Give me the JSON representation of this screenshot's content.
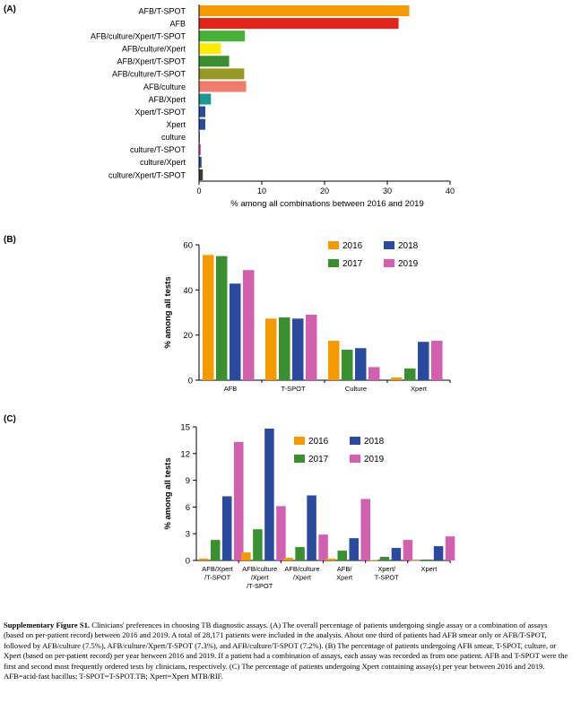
{
  "colors": {
    "y2016": "#f49a00",
    "y2017": "#3a8f2e",
    "y2018": "#2a4aa0",
    "y2019": "#d35faf"
  },
  "chart_data": [
    {
      "panel_label": "(A)",
      "type": "bar",
      "orientation": "horizontal",
      "categories": [
        "AFB/T-SPOT",
        "AFB",
        "AFB/culture/Xpert/T-SPOT",
        "AFB/culture/Xpert",
        "AFB/Xpert/T-SPOT",
        "AFB/culture/T-SPOT",
        "AFB/culture",
        "AFB/Xpert",
        "Xpert/T-SPOT",
        "Xpert",
        "culture",
        "culture/T-SPOT",
        "culture/Xpert",
        "culture/Xpert/T-SPOT"
      ],
      "values": [
        33.5,
        31.8,
        7.3,
        3.5,
        4.8,
        7.2,
        7.5,
        1.9,
        1.0,
        1.0,
        0.1,
        0.3,
        0.4,
        0.6
      ],
      "bar_colors": [
        "#f49a00",
        "#e0261c",
        "#47b036",
        "#ffeb00",
        "#3a8f2e",
        "#999926",
        "#ef7b6b",
        "#189a90",
        "#2a4aa0",
        "#2a4aa0",
        "#3a3a3a",
        "#d35faf",
        "#2a4aa0",
        "#3a3a3a"
      ],
      "xlabel": "% among all combinations between 2016 and 2019",
      "xlim": [
        0,
        40
      ],
      "xticks": [
        "0",
        "10",
        "20",
        "30",
        "40"
      ],
      "grid": false
    },
    {
      "panel_label": "(B)",
      "type": "bar",
      "categories": [
        "AFB",
        "T-SPOT",
        "Culture",
        "Xpert"
      ],
      "series": [
        {
          "name": "2016",
          "values": [
            55.5,
            27.3,
            17.5,
            1.2
          ]
        },
        {
          "name": "2017",
          "values": [
            55.0,
            27.8,
            13.5,
            5.2
          ]
        },
        {
          "name": "2018",
          "values": [
            42.8,
            27.3,
            14.2,
            17.0
          ]
        },
        {
          "name": "2019",
          "values": [
            48.8,
            29.0,
            5.8,
            17.5
          ]
        }
      ],
      "ylabel": "% among all tests",
      "ylim": [
        0,
        60
      ],
      "yticks": [
        "0",
        "20",
        "40",
        "60"
      ],
      "legend": "top-right",
      "grid": false
    },
    {
      "panel_label": "(C)",
      "type": "bar",
      "categories": [
        "AFB/Xpert\n/T-SPOT",
        "AFB/culture\n/Xpert\n/T-SPOT",
        "AFB/culture\n/Xpert",
        "AFB/\nXpert",
        "Xpert/\nT-SPOT",
        "Xpert"
      ],
      "series": [
        {
          "name": "2016",
          "values": [
            0.2,
            0.9,
            0.3,
            0.2,
            0.05,
            0.02
          ]
        },
        {
          "name": "2017",
          "values": [
            2.3,
            3.5,
            1.5,
            1.1,
            0.4,
            0.1
          ]
        },
        {
          "name": "2018",
          "values": [
            7.2,
            14.8,
            7.3,
            2.5,
            1.4,
            1.6
          ]
        },
        {
          "name": "2019",
          "values": [
            13.3,
            6.1,
            2.9,
            6.9,
            2.3,
            2.7
          ]
        }
      ],
      "ylabel": "% among all tests",
      "ylim": [
        0,
        15
      ],
      "yticks": [
        "0",
        "3",
        "6",
        "9",
        "12",
        "15"
      ],
      "legend": "top-right",
      "grid": false
    }
  ],
  "caption": {
    "lead": "Supplementary Figure S1.",
    "text": " Clinicians' preferences in choosing TB diagnostic assays. (A) The overall percentage of patients undergoing single assay or a combination of assays (based on per-patient record) between 2016 and 2019. A total of 28,171 patients were included in the analysis. About one third of patients had AFB smear only or AFB/T-SPOT, followed by AFB/culture (7.5%), AFB/culture/Xpert/T-SPOT (7.3%), and AFB/culture/T-SPOT (7.2%). (B) The percentage of patients undergoing AFB smear, T-SPOT, culture, or Xpert (based on per-patient record) per year between 2016 and 2019. If a patient had a combination of assays, each assay was recorded as from one patient. AFB and T-SPOT were the first and second most frequently ordered tests by clinicians, respectively. (C) The percentage of patients undergoing Xpert containing assay(s) per year between 2016 and 2019. AFB=acid-fast bacillus; T-SPOT=T-SPOT.TB; Xpert=Xpert MTB/RIF."
  }
}
